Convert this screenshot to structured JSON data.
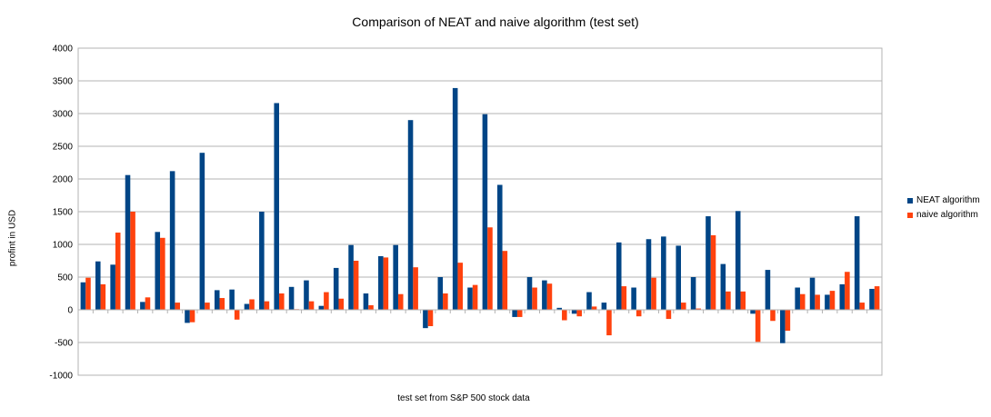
{
  "chart_data": {
    "type": "bar",
    "title": "Comparison of NEAT and naive algorithm (test set)",
    "xlabel": "test set from S&P 500 stock data",
    "ylabel": "profint in USD",
    "ylim": [
      -1000,
      4000
    ],
    "yticks": [
      "-1000",
      "-500",
      "0",
      "500",
      "1000",
      "1500",
      "2000",
      "2500",
      "3000",
      "3500",
      "4000"
    ],
    "grid": true,
    "legend_position": "right",
    "series": [
      {
        "name": "NEAT algorithm",
        "color": "#004586",
        "values": [
          420,
          740,
          690,
          2060,
          120,
          1190,
          2120,
          -200,
          2400,
          300,
          310,
          90,
          1500,
          3160,
          350,
          450,
          60,
          640,
          990,
          250,
          820,
          990,
          2900,
          -280,
          500,
          3390,
          340,
          2990,
          1910,
          -110,
          500,
          450,
          30,
          -60,
          270,
          110,
          1030,
          340,
          1080,
          1120,
          980,
          500,
          1430,
          700,
          1510,
          -60,
          610,
          -510,
          340,
          490,
          230,
          390,
          1430,
          320
        ]
      },
      {
        "name": "naive algorithm",
        "color": "#ff420e",
        "values": [
          490,
          390,
          1180,
          1500,
          190,
          1100,
          110,
          -190,
          110,
          180,
          -150,
          160,
          130,
          250,
          10,
          130,
          270,
          170,
          750,
          70,
          800,
          240,
          650,
          -250,
          250,
          720,
          380,
          1260,
          900,
          -110,
          340,
          400,
          -160,
          -100,
          50,
          -390,
          360,
          -100,
          490,
          -140,
          110,
          20,
          1140,
          280,
          280,
          -490,
          -170,
          -320,
          240,
          230,
          290,
          580,
          110,
          360
        ]
      }
    ]
  }
}
